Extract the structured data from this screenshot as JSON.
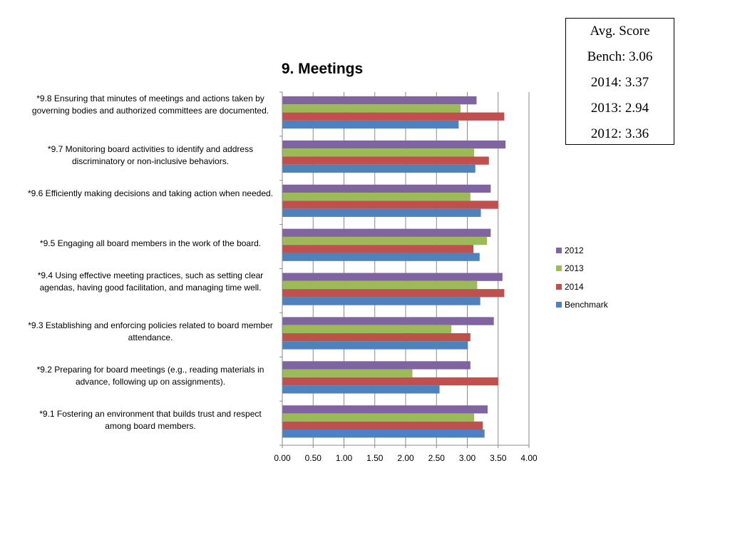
{
  "chart_data": {
    "type": "bar",
    "orientation": "horizontal",
    "title": "9. Meetings",
    "xlim": [
      0,
      4
    ],
    "xticks": [
      "0.00",
      "0.50",
      "1.00",
      "1.50",
      "2.00",
      "2.50",
      "3.00",
      "3.50",
      "4.00"
    ],
    "grid": "vertical",
    "legend_position": "right",
    "categories": [
      "*9.8 Ensuring that minutes of meetings and actions taken by governing bodies and authorized committees are documented.",
      "*9.7 Monitoring board activities to identify and address discriminatory or non-inclusive behaviors.",
      "*9.6 Efficiently making decisions and taking action when needed.",
      "*9.5 Engaging all board members in the work of the board.",
      "*9.4 Using effective meeting practices, such as setting clear agendas, having good facilitation, and managing time well.",
      "*9.3 Establishing and enforcing policies related to board member attendance.",
      "*9.2 Preparing for board meetings (e.g., reading materials in advance, following up on assignments).",
      "*9.1 Fostering an environment that builds trust and respect among board members."
    ],
    "series": [
      {
        "name": "2012",
        "color": "#8064A2",
        "values": [
          3.15,
          3.62,
          3.38,
          3.38,
          3.57,
          3.43,
          3.05,
          3.33
        ]
      },
      {
        "name": "2013",
        "color": "#9BBB59",
        "values": [
          2.89,
          3.11,
          3.05,
          3.32,
          3.16,
          2.74,
          2.11,
          3.11
        ]
      },
      {
        "name": "2014",
        "color": "#C0504D",
        "values": [
          3.6,
          3.35,
          3.5,
          3.1,
          3.6,
          3.05,
          3.5,
          3.25
        ]
      },
      {
        "name": "Benchmark",
        "color": "#4F81BD",
        "values": [
          2.86,
          3.13,
          3.22,
          3.2,
          3.21,
          3.01,
          2.55,
          3.28
        ]
      }
    ]
  },
  "score_box": {
    "lines": [
      "Avg. Score",
      "Bench: 3.06",
      "2014: 3.37",
      "2013: 2.94",
      "2012: 3.36"
    ]
  }
}
